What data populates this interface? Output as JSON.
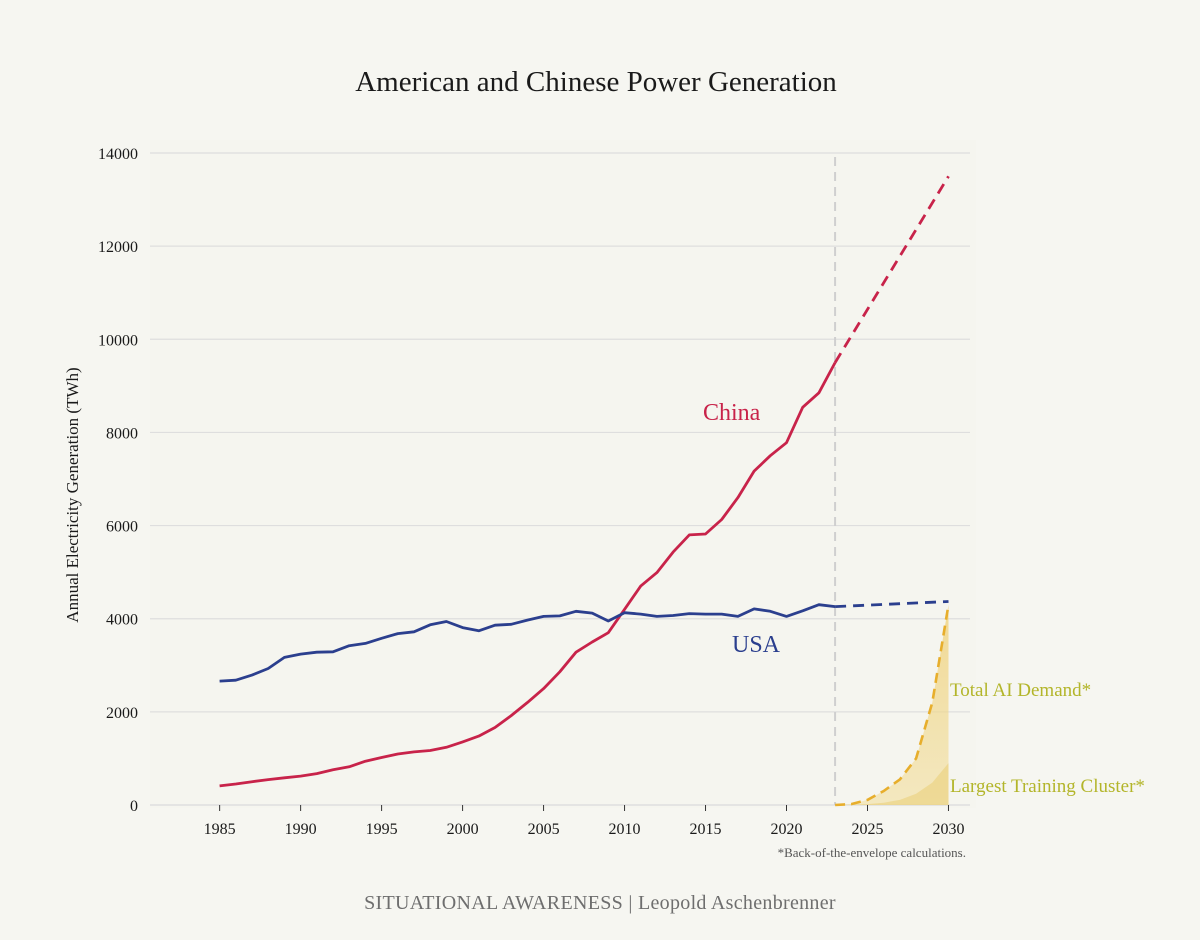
{
  "chart_data": {
    "type": "line",
    "title": "American and Chinese Power Generation",
    "ylabel": "Annual Electricity Generation (TWh)",
    "xlabel": "",
    "xlim": [
      1980.7,
      2031.7
    ],
    "ylim": [
      0,
      14000
    ],
    "x_ticks": [
      1985,
      1990,
      1995,
      2000,
      2005,
      2010,
      2015,
      2020,
      2025,
      2030
    ],
    "y_ticks": [
      0,
      2000,
      4000,
      6000,
      8000,
      10000,
      12000,
      14000
    ],
    "grid": "horizontal",
    "forecast_start": 2023,
    "series": [
      {
        "name": "China",
        "color": "#c8234a",
        "x": [
          1985,
          1986,
          1987,
          1988,
          1989,
          1990,
          1991,
          1992,
          1993,
          1994,
          1995,
          1996,
          1997,
          1998,
          1999,
          2000,
          2001,
          2002,
          2003,
          2004,
          2005,
          2006,
          2007,
          2008,
          2009,
          2010,
          2011,
          2012,
          2013,
          2014,
          2015,
          2016,
          2017,
          2018,
          2019,
          2020,
          2021,
          2022,
          2023
        ],
        "values": [
          410,
          450,
          500,
          545,
          585,
          620,
          675,
          755,
          820,
          940,
          1020,
          1095,
          1140,
          1170,
          1240,
          1355,
          1480,
          1665,
          1920,
          2200,
          2500,
          2860,
          3280,
          3500,
          3700,
          4200,
          4700,
          4990,
          5430,
          5800,
          5820,
          6130,
          6600,
          7170,
          7500,
          7780,
          8540,
          8850,
          9500
        ],
        "projection": {
          "x": [
            2023,
            2030
          ],
          "values": [
            9500,
            13500
          ]
        }
      },
      {
        "name": "USA",
        "color": "#2b3f8e",
        "x": [
          1985,
          1986,
          1987,
          1988,
          1989,
          1990,
          1991,
          1992,
          1993,
          1994,
          1995,
          1996,
          1997,
          1998,
          1999,
          2000,
          2001,
          2002,
          2003,
          2004,
          2005,
          2006,
          2007,
          2008,
          2009,
          2010,
          2011,
          2012,
          2013,
          2014,
          2015,
          2016,
          2017,
          2018,
          2019,
          2020,
          2021,
          2022,
          2023
        ],
        "values": [
          2660,
          2680,
          2790,
          2930,
          3170,
          3240,
          3280,
          3290,
          3420,
          3470,
          3580,
          3680,
          3720,
          3870,
          3940,
          3810,
          3740,
          3860,
          3880,
          3970,
          4050,
          4060,
          4160,
          4120,
          3950,
          4130,
          4100,
          4050,
          4070,
          4110,
          4100,
          4100,
          4050,
          4210,
          4160,
          4050,
          4170,
          4300,
          4260
        ],
        "projection": {
          "x": [
            2023,
            2030
          ],
          "values": [
            4260,
            4370
          ]
        }
      },
      {
        "name": "Total AI Demand*",
        "color": "#e7ae2c",
        "x": [
          2023,
          2024,
          2025,
          2026,
          2027,
          2028,
          2029,
          2030
        ],
        "values": [
          0,
          20,
          110,
          300,
          550,
          1000,
          2200,
          4300
        ]
      },
      {
        "name": "Largest Training Cluster*",
        "color": "#e9cd74",
        "x": [
          2023,
          2024,
          2025,
          2026,
          2027,
          2028,
          2029,
          2030
        ],
        "values": [
          0,
          5,
          20,
          50,
          110,
          240,
          480,
          900
        ]
      }
    ],
    "annotations": {
      "china_label": "China",
      "usa_label": "USA",
      "ai_demand_label": "Total AI Demand*",
      "training_cluster_label": "Largest Training Cluster*",
      "footnote": "*Back-of-the-envelope calculations."
    }
  },
  "footer": "SITUATIONAL AWARENESS | Leopold Aschenbrenner"
}
